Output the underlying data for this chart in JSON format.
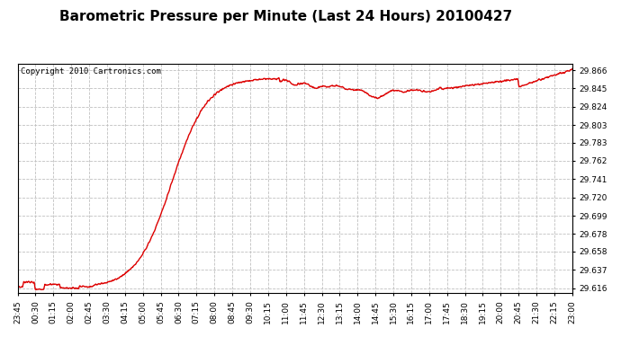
{
  "title": "Barometric Pressure per Minute (Last 24 Hours) 20100427",
  "copyright": "Copyright 2010 Cartronics.com",
  "line_color": "#dd0000",
  "bg_color": "#ffffff",
  "plot_bg_color": "#ffffff",
  "grid_color": "#c0c0c0",
  "grid_style": "--",
  "yticks": [
    29.616,
    29.637,
    29.658,
    29.678,
    29.699,
    29.72,
    29.741,
    29.762,
    29.783,
    29.803,
    29.824,
    29.845,
    29.866
  ],
  "ylim": [
    29.61,
    29.873
  ],
  "xtick_labels": [
    "23:45",
    "00:30",
    "01:15",
    "02:00",
    "02:45",
    "03:30",
    "04:15",
    "05:00",
    "05:45",
    "06:30",
    "07:15",
    "08:00",
    "08:45",
    "09:30",
    "10:15",
    "11:00",
    "11:45",
    "12:30",
    "13:15",
    "14:00",
    "14:45",
    "15:30",
    "16:15",
    "17:00",
    "17:45",
    "18:30",
    "19:15",
    "20:00",
    "20:45",
    "21:30",
    "22:15",
    "23:00"
  ],
  "title_fontsize": 11,
  "copyright_fontsize": 6.5,
  "tick_fontsize": 6.5,
  "line_width": 1.0
}
